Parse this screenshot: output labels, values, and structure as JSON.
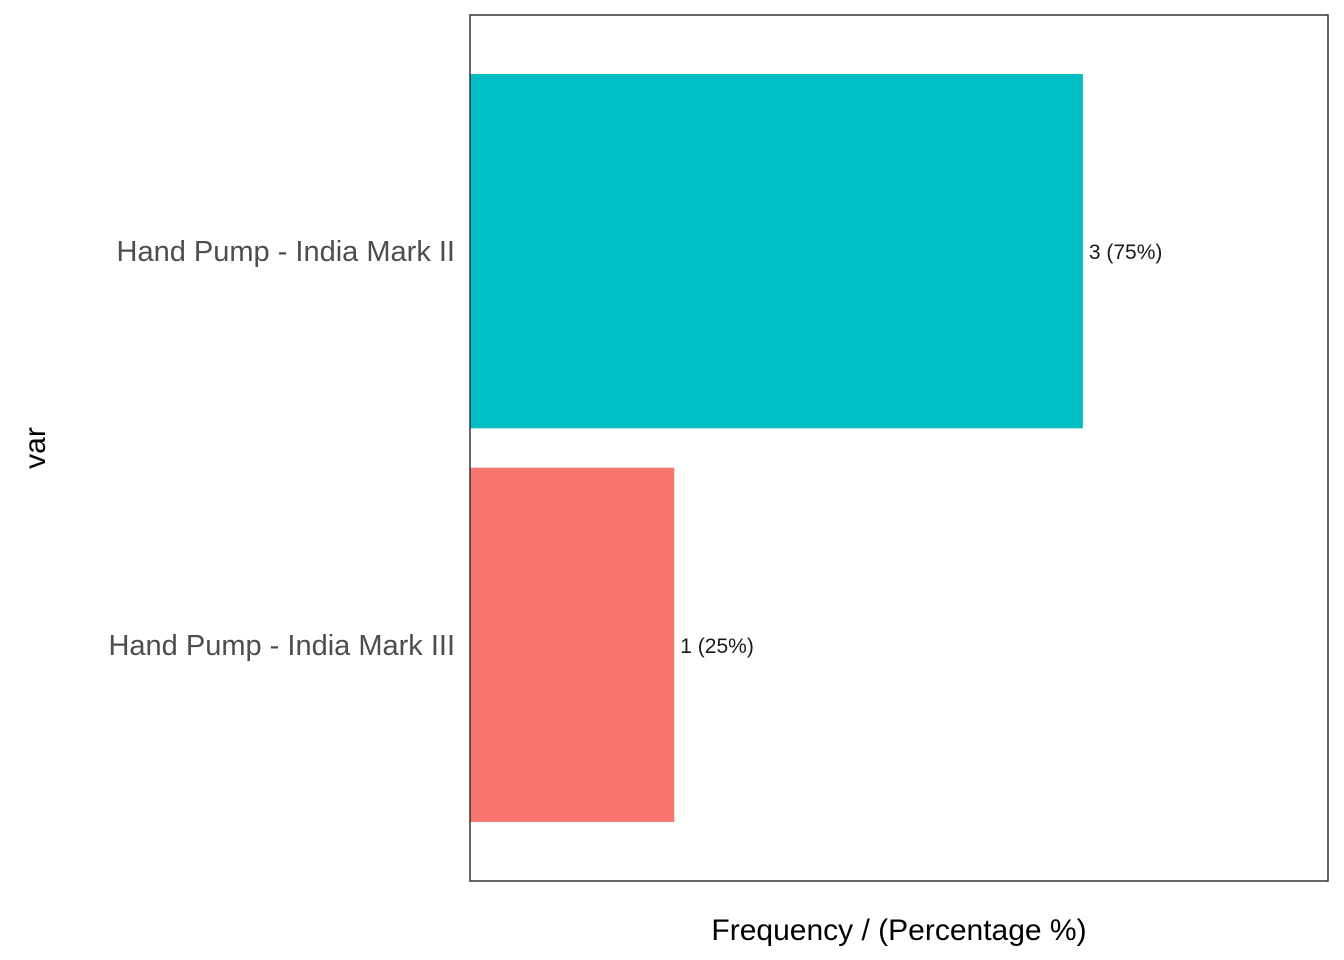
{
  "chart_data": {
    "type": "bar",
    "orientation": "horizontal",
    "categories": [
      "Hand Pump - India Mark II",
      "Hand Pump - India Mark III"
    ],
    "values": [
      3,
      1
    ],
    "percentages": [
      75,
      25
    ],
    "data_labels": [
      "3 (75%)",
      "1 (25%)"
    ],
    "colors": [
      "#00BFC4",
      "#F8766D"
    ],
    "xlabel": "Frequency / (Percentage %)",
    "ylabel": "var",
    "xlim": [
      0,
      4.2
    ],
    "grid": false,
    "legend": "none"
  }
}
